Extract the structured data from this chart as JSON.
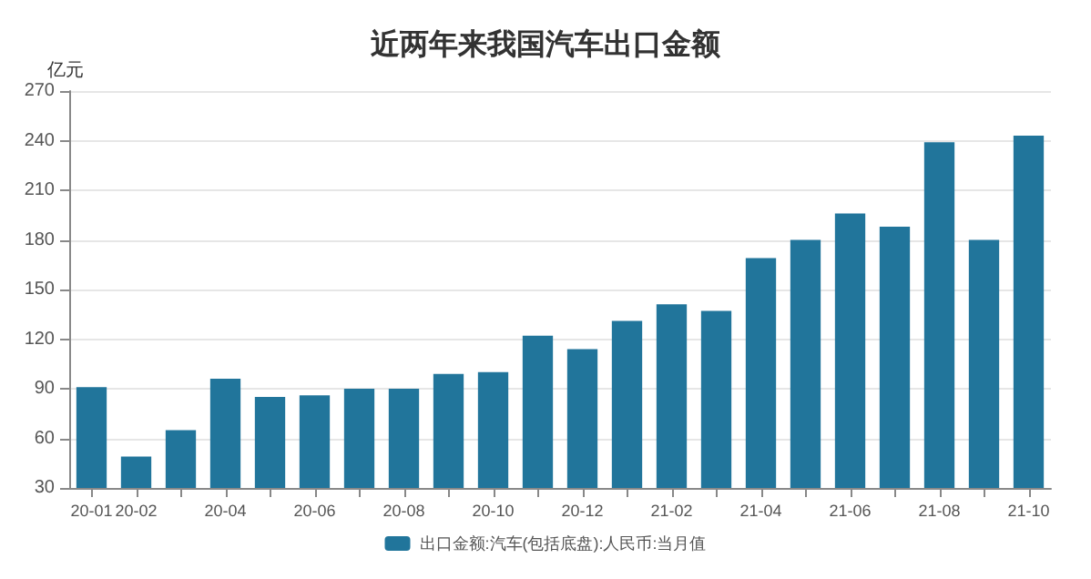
{
  "chart_data": {
    "type": "bar",
    "title": "近两年来我国汽车出口金额",
    "ylabel": "亿元",
    "categories": [
      "20-01",
      "20-02",
      null,
      "20-04",
      null,
      "20-06",
      null,
      "20-08",
      null,
      "20-10",
      null,
      "20-12",
      null,
      "21-02",
      null,
      "21-04",
      null,
      "21-06",
      null,
      "21-08",
      null,
      "21-10"
    ],
    "series": [
      {
        "name": "出口金额:汽车(包括底盘):人民币:当月值",
        "color": "#21759b",
        "values": [
          91,
          49,
          65,
          96,
          85,
          86,
          90,
          90,
          99,
          100,
          122,
          114,
          131,
          141,
          137,
          169,
          180,
          196,
          188,
          239,
          180,
          243
        ]
      }
    ],
    "ylim": [
      30,
      270
    ],
    "yticks": [
      30,
      60,
      90,
      120,
      150,
      180,
      210,
      240,
      270
    ],
    "grid": "y",
    "legend": "bottom"
  }
}
